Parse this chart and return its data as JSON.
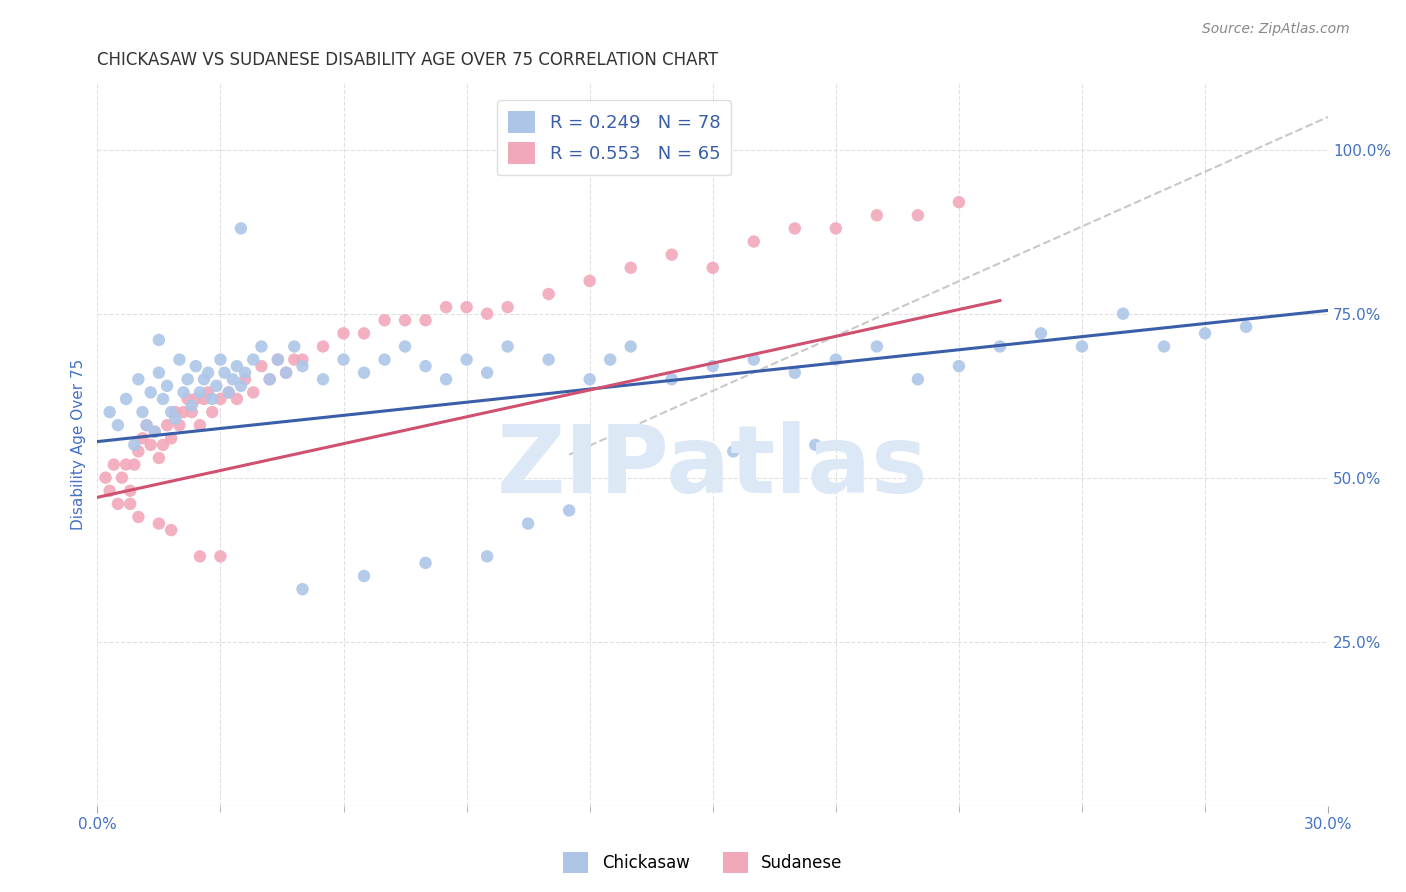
{
  "title": "CHICKASAW VS SUDANESE DISABILITY AGE OVER 75 CORRELATION CHART",
  "source": "Source: ZipAtlas.com",
  "ylabel": "Disability Age Over 75",
  "xlabel": "",
  "watermark": "ZIPatlas",
  "xlim": [
    0.0,
    0.3
  ],
  "ylim": [
    0.0,
    1.1
  ],
  "ytick_vals": [
    0.25,
    0.5,
    0.75,
    1.0
  ],
  "ytick_labels": [
    "25.0%",
    "50.0%",
    "75.0%",
    "100.0%"
  ],
  "legend_blue_R": "0.249",
  "legend_blue_N": "78",
  "legend_pink_R": "0.553",
  "legend_pink_N": "65",
  "blue_color": "#adc6e8",
  "pink_color": "#f2a8bb",
  "blue_line_color": "#3a5fa8",
  "pink_line_color": "#d05070",
  "dashed_line_color": "#c8c8c8",
  "title_color": "#333333",
  "axis_label_color": "#4472c4",
  "tick_label_color": "#4472c4",
  "watermark_color": "#dce8f5",
  "grid_color": "#e0e0e0",
  "background_color": "#ffffff",
  "blue_scatter_x": [
    0.003,
    0.005,
    0.007,
    0.009,
    0.01,
    0.011,
    0.012,
    0.013,
    0.014,
    0.015,
    0.015,
    0.016,
    0.017,
    0.018,
    0.019,
    0.02,
    0.021,
    0.022,
    0.023,
    0.024,
    0.025,
    0.026,
    0.027,
    0.028,
    0.029,
    0.03,
    0.031,
    0.032,
    0.033,
    0.034,
    0.035,
    0.036,
    0.038,
    0.04,
    0.042,
    0.044,
    0.046,
    0.048,
    0.05,
    0.055,
    0.06,
    0.065,
    0.07,
    0.075,
    0.08,
    0.085,
    0.09,
    0.095,
    0.1,
    0.11,
    0.12,
    0.125,
    0.13,
    0.14,
    0.15,
    0.16,
    0.17,
    0.18,
    0.19,
    0.2,
    0.21,
    0.22,
    0.23,
    0.24,
    0.25,
    0.26,
    0.27,
    0.28,
    0.155,
    0.175,
    0.135,
    0.115,
    0.105,
    0.095,
    0.08,
    0.065,
    0.05,
    0.035
  ],
  "blue_scatter_y": [
    0.6,
    0.58,
    0.62,
    0.55,
    0.65,
    0.6,
    0.58,
    0.63,
    0.57,
    0.66,
    0.71,
    0.62,
    0.64,
    0.6,
    0.59,
    0.68,
    0.63,
    0.65,
    0.61,
    0.67,
    0.63,
    0.65,
    0.66,
    0.62,
    0.64,
    0.68,
    0.66,
    0.63,
    0.65,
    0.67,
    0.64,
    0.66,
    0.68,
    0.7,
    0.65,
    0.68,
    0.66,
    0.7,
    0.67,
    0.65,
    0.68,
    0.66,
    0.68,
    0.7,
    0.67,
    0.65,
    0.68,
    0.66,
    0.7,
    0.68,
    0.65,
    0.68,
    0.7,
    0.65,
    0.67,
    0.68,
    0.66,
    0.68,
    0.7,
    0.65,
    0.67,
    0.7,
    0.72,
    0.7,
    0.75,
    0.7,
    0.72,
    0.73,
    0.54,
    0.55,
    0.53,
    0.45,
    0.43,
    0.38,
    0.37,
    0.35,
    0.33,
    0.88
  ],
  "pink_scatter_x": [
    0.002,
    0.003,
    0.004,
    0.005,
    0.006,
    0.007,
    0.008,
    0.009,
    0.01,
    0.011,
    0.012,
    0.013,
    0.014,
    0.015,
    0.016,
    0.017,
    0.018,
    0.019,
    0.02,
    0.021,
    0.022,
    0.023,
    0.024,
    0.025,
    0.026,
    0.027,
    0.028,
    0.03,
    0.032,
    0.034,
    0.036,
    0.038,
    0.04,
    0.042,
    0.044,
    0.046,
    0.048,
    0.05,
    0.055,
    0.06,
    0.065,
    0.07,
    0.075,
    0.08,
    0.085,
    0.09,
    0.095,
    0.1,
    0.11,
    0.12,
    0.13,
    0.14,
    0.15,
    0.16,
    0.17,
    0.18,
    0.19,
    0.2,
    0.21,
    0.03,
    0.025,
    0.018,
    0.015,
    0.01,
    0.008
  ],
  "pink_scatter_y": [
    0.5,
    0.48,
    0.52,
    0.46,
    0.5,
    0.52,
    0.48,
    0.52,
    0.54,
    0.56,
    0.58,
    0.55,
    0.57,
    0.53,
    0.55,
    0.58,
    0.56,
    0.6,
    0.58,
    0.6,
    0.62,
    0.6,
    0.62,
    0.58,
    0.62,
    0.63,
    0.6,
    0.62,
    0.63,
    0.62,
    0.65,
    0.63,
    0.67,
    0.65,
    0.68,
    0.66,
    0.68,
    0.68,
    0.7,
    0.72,
    0.72,
    0.74,
    0.74,
    0.74,
    0.76,
    0.76,
    0.75,
    0.76,
    0.78,
    0.8,
    0.82,
    0.84,
    0.82,
    0.86,
    0.88,
    0.88,
    0.9,
    0.9,
    0.92,
    0.38,
    0.38,
    0.42,
    0.43,
    0.44,
    0.46
  ],
  "blue_line_x": [
    0.0,
    0.3
  ],
  "blue_line_y": [
    0.555,
    0.755
  ],
  "pink_line_x": [
    0.0,
    0.22
  ],
  "pink_line_y": [
    0.47,
    0.77
  ],
  "dash_line_x": [
    0.115,
    0.3
  ],
  "dash_line_y": [
    0.535,
    1.05
  ]
}
